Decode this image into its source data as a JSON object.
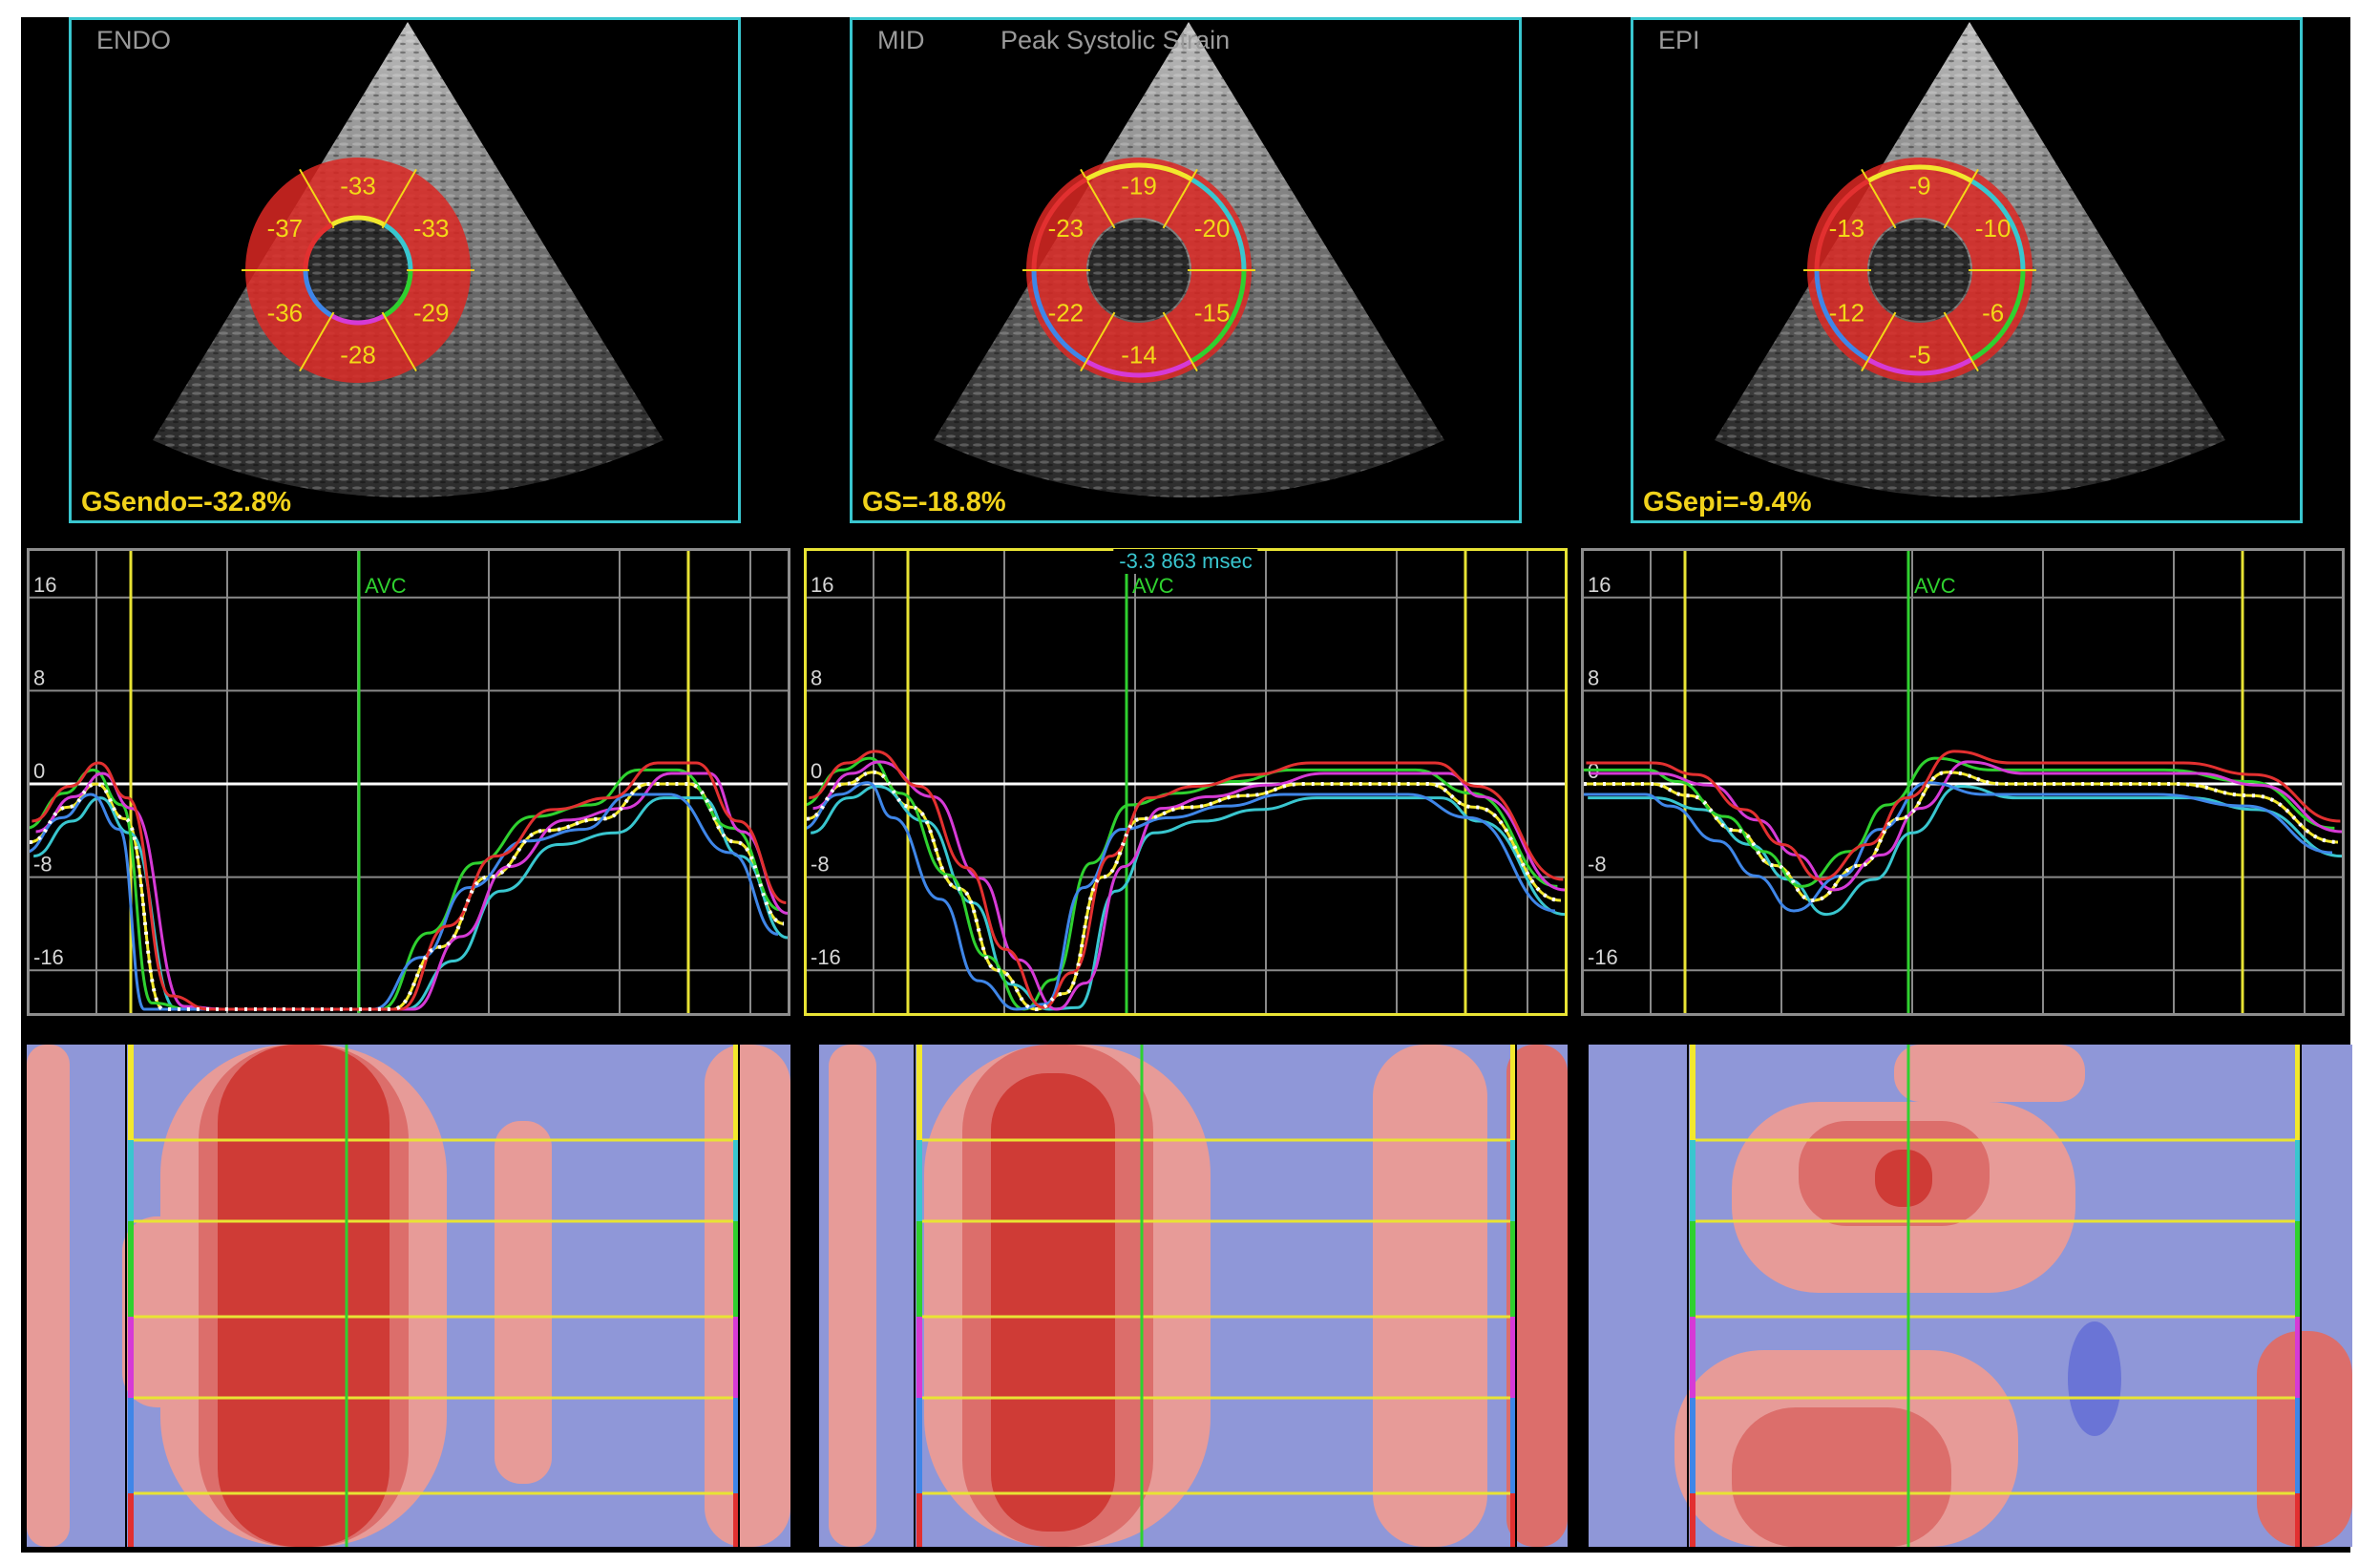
{
  "panels": [
    {
      "layer": "ENDO",
      "title": "",
      "global": "GSendo=-32.8%",
      "segments": [
        "-33",
        "-33",
        "-29",
        "-28",
        "-36",
        "-37"
      ]
    },
    {
      "layer": "MID",
      "title": "Peak Systolic Strain",
      "global": "GS=-18.8%",
      "segments": [
        "-19",
        "-20",
        "-15",
        "-14",
        "-22",
        "-23"
      ]
    },
    {
      "layer": "EPI",
      "title": "",
      "global": "GSepi=-9.4%",
      "segments": [
        "-9",
        "-10",
        "-6",
        "-5",
        "-12",
        "-13"
      ]
    }
  ],
  "graphs": {
    "avc_label": "AVC",
    "y_ticks": [
      "16",
      "8",
      "0",
      "-8",
      "-16"
    ],
    "cursor_readout": "-3.3  863 msec"
  },
  "colors": {
    "segment_colors": [
      "#f2e82d",
      "#39c6cf",
      "#2fd12f",
      "#d63ad6",
      "#3f86e8",
      "#e23030"
    ],
    "frame": "#39c6cf",
    "avc_line": "#2fd12f",
    "marker_line": "#e8e334",
    "global_text": "#f1d21b"
  }
}
